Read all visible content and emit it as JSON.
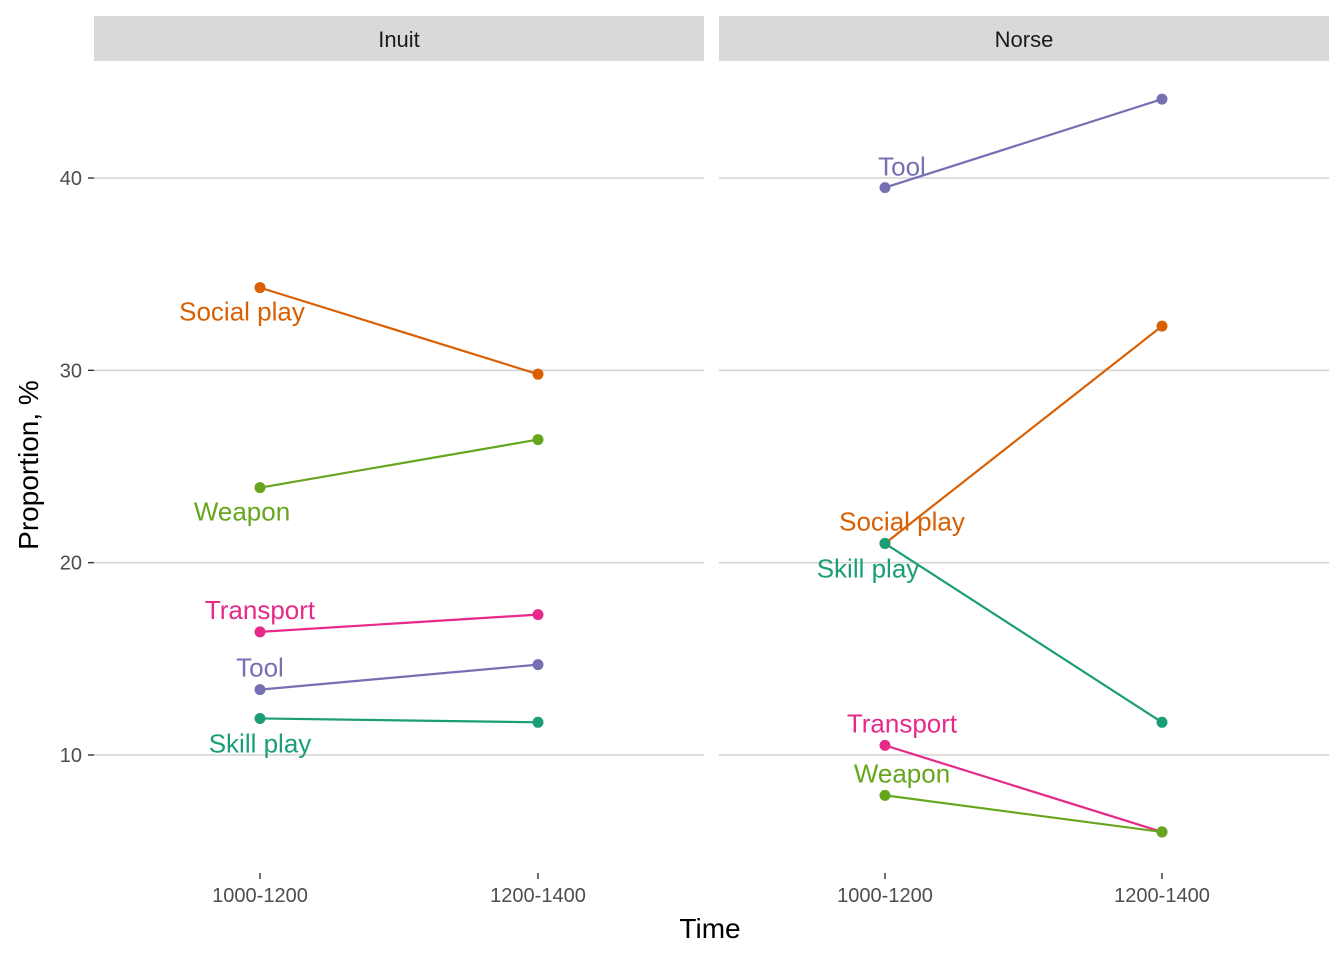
{
  "chart_data": {
    "type": "line",
    "xlabel": "Time",
    "ylabel": "Proportion, %",
    "categories": [
      "1000-1200",
      "1200-1400"
    ],
    "yticks": [
      10,
      20,
      30,
      40
    ],
    "ylim": [
      4.5,
      46.5
    ],
    "grid": "horizontal major gridlines only",
    "legend": "none (direct labels at left points)",
    "panels": [
      {
        "name": "Inuit",
        "series": [
          {
            "name": "Social play",
            "color": "#D95F02",
            "values": [
              34.3,
              29.8
            ]
          },
          {
            "name": "Weapon",
            "color": "#66A61E",
            "values": [
              23.9,
              26.4
            ]
          },
          {
            "name": "Transport",
            "color": "#E7298A",
            "values": [
              16.4,
              17.3
            ]
          },
          {
            "name": "Tool",
            "color": "#7570B3",
            "values": [
              13.4,
              14.7
            ]
          },
          {
            "name": "Skill play",
            "color": "#1B9E77",
            "values": [
              11.9,
              11.7
            ]
          }
        ]
      },
      {
        "name": "Norse",
        "series": [
          {
            "name": "Tool",
            "color": "#7570B3",
            "values": [
              39.5,
              44.1
            ]
          },
          {
            "name": "Social play",
            "color": "#D95F02",
            "values": [
              21.0,
              32.3
            ]
          },
          {
            "name": "Skill play",
            "color": "#1B9E77",
            "values": [
              21.0,
              11.7
            ]
          },
          {
            "name": "Transport",
            "color": "#E7298A",
            "values": [
              10.5,
              6.0
            ]
          },
          {
            "name": "Weapon",
            "color": "#66A61E",
            "values": [
              7.9,
              6.0
            ]
          }
        ]
      }
    ]
  }
}
